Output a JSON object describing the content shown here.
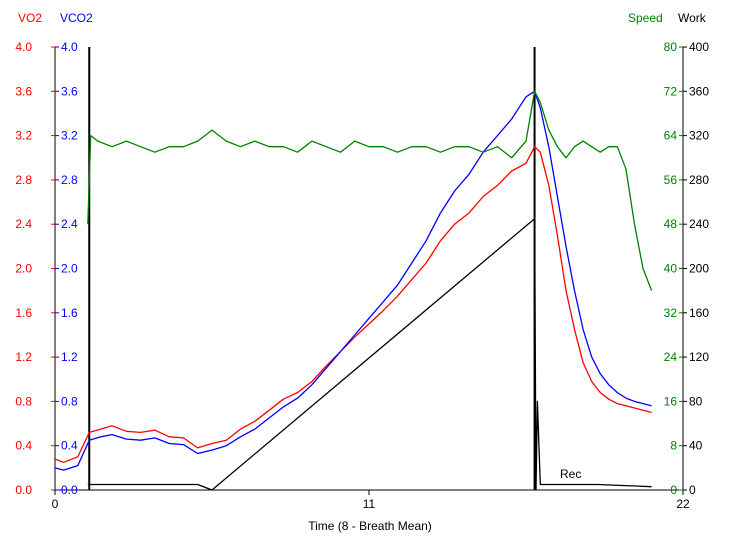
{
  "chart_data": {
    "type": "line",
    "header": {
      "vo2_label": "VO2",
      "vco2_label": "VCO2",
      "speed_label": "Speed",
      "work_label": "Work"
    },
    "xlabel": "Time (8 - Breath Mean)",
    "xlim": [
      0,
      22
    ],
    "x_ticks": [
      "0",
      "11",
      "22"
    ],
    "axes": {
      "vo2": {
        "range": [
          0,
          4.0
        ],
        "ticks": [
          "0.0",
          "0.4",
          "0.8",
          "1.2",
          "1.6",
          "2.0",
          "2.4",
          "2.8",
          "3.2",
          "3.6",
          "4.0"
        ],
        "color": "#ff0000"
      },
      "vco2": {
        "range": [
          0,
          4.0
        ],
        "ticks": [
          "0.0",
          "0.4",
          "0.8",
          "1.2",
          "1.6",
          "2.0",
          "2.4",
          "2.8",
          "3.2",
          "3.6",
          "4.0"
        ],
        "color": "#0000ff"
      },
      "speed": {
        "range": [
          0,
          80
        ],
        "ticks": [
          "0",
          "8",
          "16",
          "24",
          "32",
          "40",
          "48",
          "56",
          "64",
          "72",
          "80"
        ],
        "color": "#008000"
      },
      "work": {
        "range": [
          0,
          400
        ],
        "ticks": [
          "0",
          "40",
          "80",
          "120",
          "160",
          "200",
          "240",
          "280",
          "320",
          "360",
          "400"
        ],
        "color": "#000000"
      }
    },
    "annotation": "Rec",
    "markers_x": [
      1.2,
      16.8
    ],
    "series": [
      {
        "name": "VO2",
        "axis": "vo2",
        "color": "#ff0000",
        "x": [
          0,
          0.3,
          0.8,
          1.2,
          1.6,
          2.0,
          2.5,
          3.0,
          3.5,
          4.0,
          4.5,
          5.0,
          5.5,
          6.0,
          6.5,
          7.0,
          7.5,
          8.0,
          8.5,
          9.0,
          9.5,
          10.0,
          10.5,
          11.0,
          11.5,
          12.0,
          12.5,
          13.0,
          13.5,
          14.0,
          14.5,
          15.0,
          15.5,
          16.0,
          16.5,
          16.8,
          17.0,
          17.3,
          17.6,
          17.9,
          18.2,
          18.5,
          18.8,
          19.1,
          19.4,
          19.7,
          20.0,
          20.3,
          20.6,
          20.9
        ],
        "y": [
          0.28,
          0.25,
          0.3,
          0.52,
          0.55,
          0.58,
          0.53,
          0.52,
          0.54,
          0.48,
          0.47,
          0.38,
          0.42,
          0.45,
          0.55,
          0.62,
          0.72,
          0.82,
          0.88,
          0.98,
          1.12,
          1.25,
          1.38,
          1.5,
          1.62,
          1.75,
          1.9,
          2.05,
          2.25,
          2.4,
          2.5,
          2.65,
          2.75,
          2.88,
          2.95,
          3.1,
          3.05,
          2.75,
          2.3,
          1.8,
          1.45,
          1.15,
          0.98,
          0.88,
          0.82,
          0.78,
          0.76,
          0.74,
          0.72,
          0.7
        ]
      },
      {
        "name": "VCO2",
        "axis": "vco2",
        "color": "#0000ff",
        "x": [
          0,
          0.3,
          0.8,
          1.2,
          1.6,
          2.0,
          2.5,
          3.0,
          3.5,
          4.0,
          4.5,
          5.0,
          5.5,
          6.0,
          6.5,
          7.0,
          7.5,
          8.0,
          8.5,
          9.0,
          9.5,
          10.0,
          10.5,
          11.0,
          11.5,
          12.0,
          12.5,
          13.0,
          13.5,
          14.0,
          14.5,
          15.0,
          15.5,
          16.0,
          16.5,
          16.8,
          17.0,
          17.3,
          17.6,
          17.9,
          18.2,
          18.5,
          18.8,
          19.1,
          19.4,
          19.7,
          20.0,
          20.3,
          20.6,
          20.9
        ],
        "y": [
          0.2,
          0.18,
          0.22,
          0.45,
          0.48,
          0.5,
          0.46,
          0.45,
          0.47,
          0.42,
          0.41,
          0.33,
          0.36,
          0.4,
          0.48,
          0.55,
          0.65,
          0.75,
          0.83,
          0.95,
          1.1,
          1.25,
          1.4,
          1.55,
          1.7,
          1.85,
          2.05,
          2.25,
          2.5,
          2.7,
          2.85,
          3.05,
          3.2,
          3.35,
          3.55,
          3.6,
          3.45,
          3.1,
          2.65,
          2.2,
          1.8,
          1.45,
          1.2,
          1.05,
          0.95,
          0.88,
          0.83,
          0.8,
          0.78,
          0.76
        ]
      },
      {
        "name": "Speed",
        "axis": "speed",
        "color": "#008000",
        "x": [
          1.15,
          1.25,
          1.5,
          2.0,
          2.5,
          3.0,
          3.5,
          4.0,
          4.5,
          5.0,
          5.5,
          6.0,
          6.5,
          7.0,
          7.5,
          8.0,
          8.5,
          9.0,
          9.5,
          10.0,
          10.5,
          11.0,
          11.5,
          12.0,
          12.5,
          13.0,
          13.5,
          14.0,
          14.5,
          15.0,
          15.5,
          16.0,
          16.5,
          16.8,
          17.0,
          17.3,
          17.6,
          17.9,
          18.2,
          18.5,
          18.8,
          19.1,
          19.4,
          19.7,
          20.0,
          20.3,
          20.6,
          20.9
        ],
        "y": [
          48,
          64,
          63,
          62,
          63,
          62,
          61,
          62,
          62,
          63,
          65,
          63,
          62,
          63,
          62,
          62,
          61,
          63,
          62,
          61,
          63,
          62,
          62,
          61,
          62,
          62,
          61,
          62,
          62,
          61,
          62,
          60,
          63,
          72,
          70,
          65,
          62,
          60,
          62,
          63,
          62,
          61,
          62,
          62,
          58,
          48,
          40,
          36
        ]
      },
      {
        "name": "Work",
        "axis": "work",
        "color": "#000000",
        "x": [
          1.15,
          2.0,
          3.0,
          4.0,
          5.0,
          5.5,
          16.8,
          16.85,
          16.9,
          17.0,
          17.2,
          17.5,
          18.0,
          19.0,
          20.0,
          20.9
        ],
        "y": [
          5,
          5,
          5,
          5,
          5,
          0,
          245,
          0,
          80,
          5,
          5,
          5,
          5,
          5,
          4,
          3
        ]
      }
    ]
  }
}
